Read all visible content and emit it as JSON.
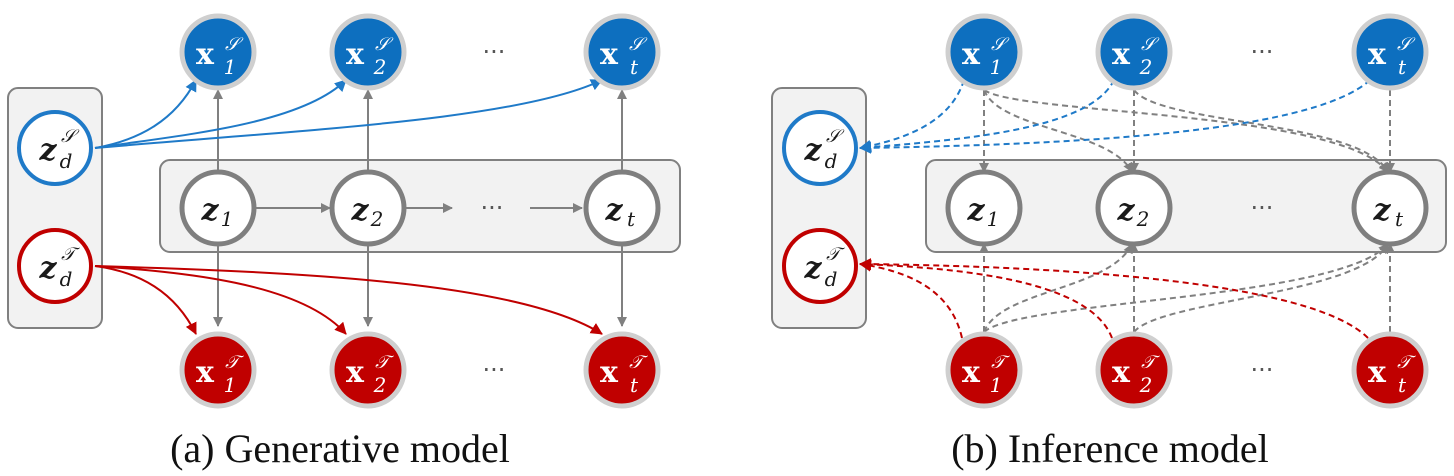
{
  "panels": {
    "generative": {
      "caption": "(a) Generative model"
    },
    "inference": {
      "caption": "(b) Inference model"
    }
  },
  "nodes": {
    "x_source": {
      "base": "x",
      "sup": "𝒮",
      "subs": [
        "1",
        "2",
        "t"
      ]
    },
    "x_target": {
      "base": "x",
      "sup": "𝒯",
      "subs": [
        "1",
        "2",
        "t"
      ]
    },
    "z": {
      "base": "z",
      "subs": [
        "1",
        "2",
        "t"
      ]
    },
    "zd_source": {
      "base": "z",
      "sub": "d",
      "sup": "𝒮"
    },
    "zd_target": {
      "base": "z",
      "sub": "d",
      "sup": "𝒯"
    },
    "ellipsis": "···"
  },
  "colors": {
    "source": "#0d6fbf",
    "target": "#c00000",
    "latent_stroke": "#7f7f7f",
    "edge": "#808080"
  }
}
